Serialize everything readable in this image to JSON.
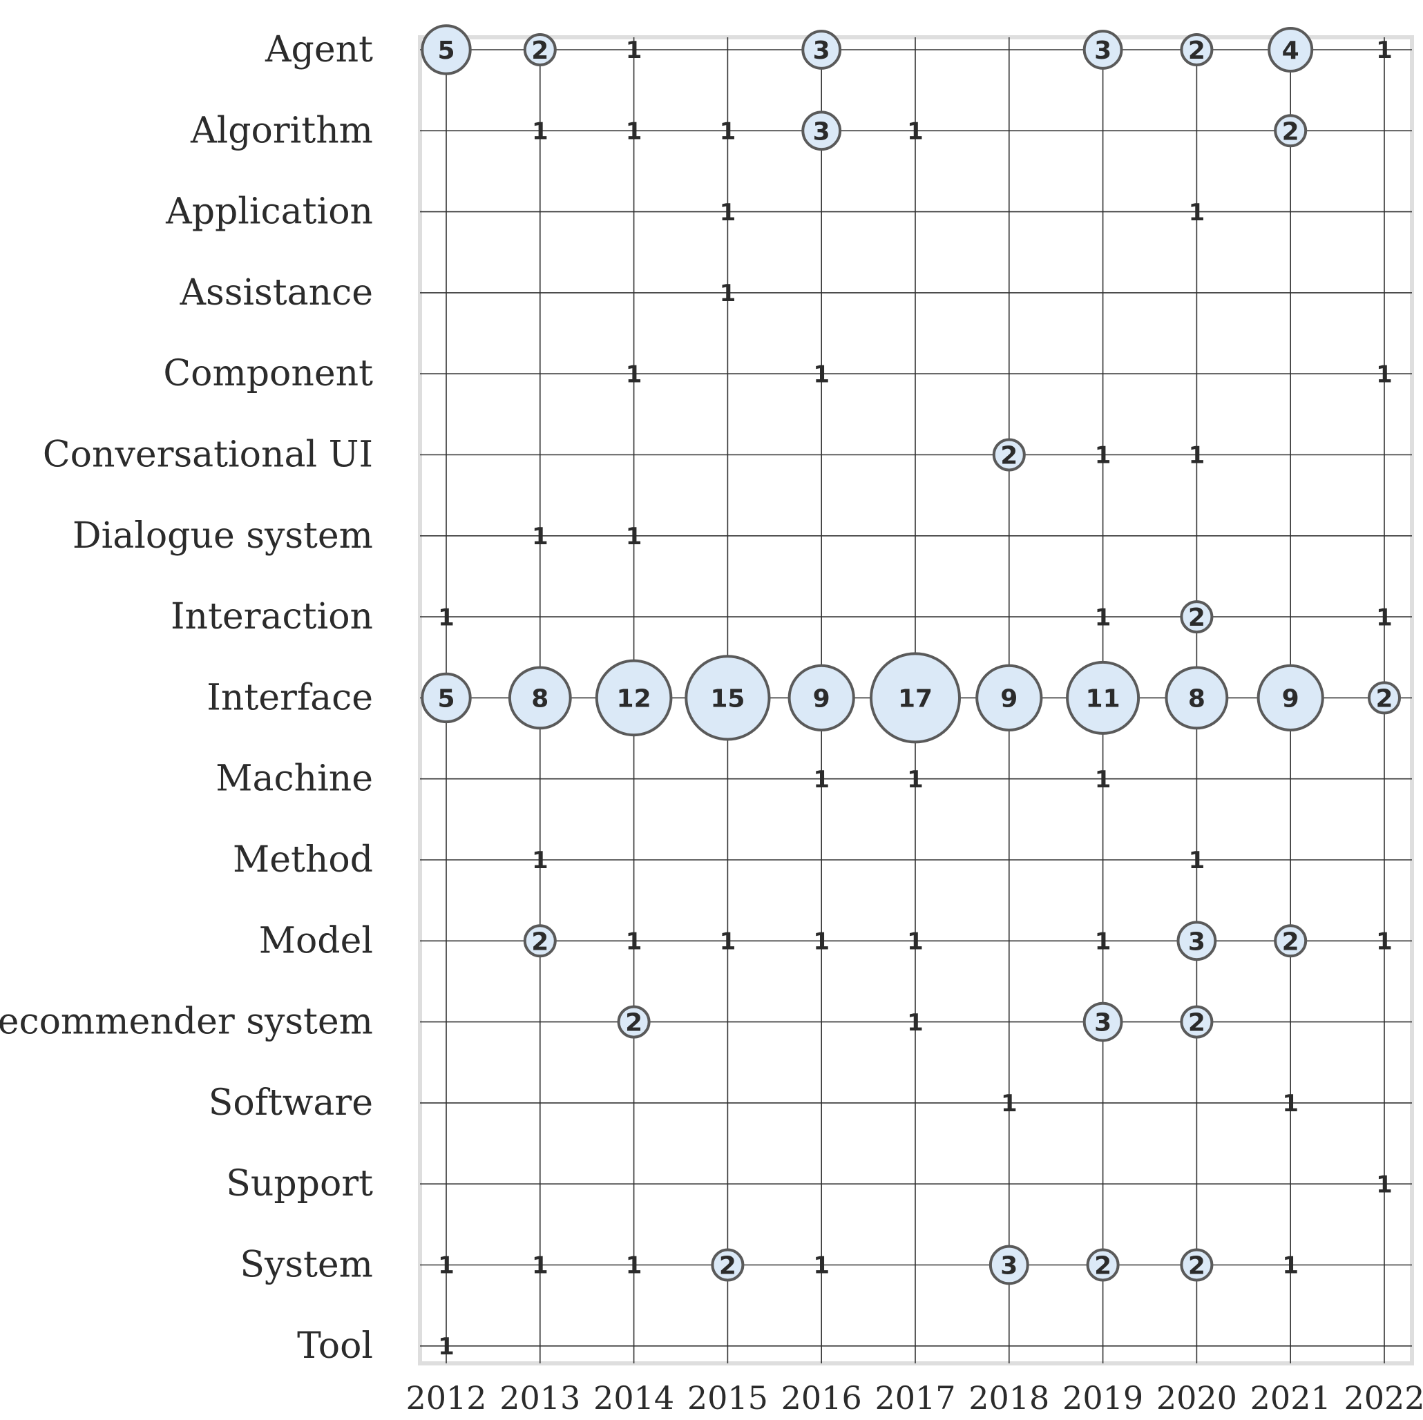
{
  "chart_data": {
    "type": "bubble-matrix",
    "title": "",
    "xlabel": "",
    "ylabel": "",
    "grid": true,
    "years": [
      "2012",
      "2013",
      "2014",
      "2015",
      "2016",
      "2017",
      "2018",
      "2019",
      "2020",
      "2021",
      "2022"
    ],
    "rows": [
      {
        "label": "Agent",
        "values": [
          5,
          2,
          1,
          null,
          3,
          null,
          null,
          3,
          2,
          4,
          1
        ]
      },
      {
        "label": "Algorithm",
        "values": [
          null,
          1,
          1,
          1,
          3,
          1,
          null,
          null,
          null,
          2,
          null
        ]
      },
      {
        "label": "Application",
        "values": [
          null,
          null,
          null,
          1,
          null,
          null,
          null,
          null,
          1,
          null,
          null
        ]
      },
      {
        "label": "Assistance",
        "values": [
          null,
          null,
          null,
          1,
          null,
          null,
          null,
          null,
          null,
          null,
          null
        ]
      },
      {
        "label": "Component",
        "values": [
          null,
          null,
          1,
          null,
          1,
          null,
          null,
          null,
          null,
          null,
          1
        ]
      },
      {
        "label": "Conversational UI",
        "values": [
          null,
          null,
          null,
          null,
          null,
          null,
          2,
          1,
          1,
          null,
          null
        ]
      },
      {
        "label": "Dialogue system",
        "values": [
          null,
          1,
          1,
          null,
          null,
          null,
          null,
          null,
          null,
          null,
          null
        ]
      },
      {
        "label": "Interaction",
        "values": [
          1,
          null,
          null,
          null,
          null,
          null,
          null,
          1,
          2,
          null,
          1
        ]
      },
      {
        "label": "Interface",
        "values": [
          5,
          8,
          12,
          15,
          9,
          17,
          9,
          11,
          8,
          9,
          2
        ]
      },
      {
        "label": "Machine",
        "values": [
          null,
          null,
          null,
          null,
          1,
          1,
          null,
          1,
          null,
          null,
          null
        ]
      },
      {
        "label": "Method",
        "values": [
          null,
          1,
          null,
          null,
          null,
          null,
          null,
          null,
          1,
          null,
          null
        ]
      },
      {
        "label": "Model",
        "values": [
          null,
          2,
          1,
          1,
          1,
          1,
          null,
          1,
          3,
          2,
          1
        ]
      },
      {
        "label": "Recommender system",
        "values": [
          null,
          null,
          2,
          null,
          null,
          1,
          null,
          3,
          2,
          null,
          null
        ]
      },
      {
        "label": "Software",
        "values": [
          null,
          null,
          null,
          null,
          null,
          null,
          1,
          null,
          null,
          1,
          null
        ]
      },
      {
        "label": "Support",
        "values": [
          null,
          null,
          null,
          null,
          null,
          null,
          null,
          null,
          null,
          null,
          1
        ]
      },
      {
        "label": "System",
        "values": [
          1,
          1,
          1,
          2,
          1,
          null,
          3,
          2,
          2,
          1,
          null
        ]
      },
      {
        "label": "Tool",
        "values": [
          1,
          null,
          null,
          null,
          null,
          null,
          null,
          null,
          null,
          null,
          null
        ]
      }
    ]
  },
  "colors": {
    "bubble_fill": "#dbe9f7",
    "bubble_stroke": "#5a5a5a",
    "grid": "#333333",
    "text": "#2b2b2b",
    "frame": "#dedede"
  }
}
